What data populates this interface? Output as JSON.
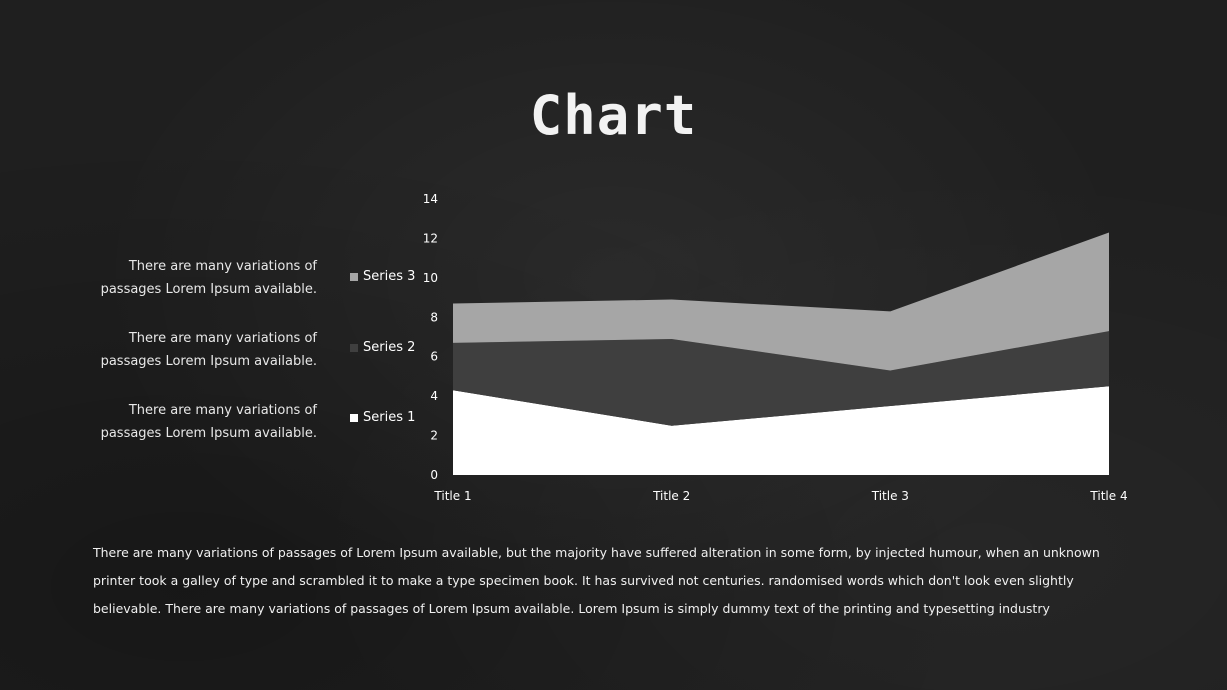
{
  "slide": {
    "title": "Chart",
    "paragraph": "There are many variations of passages of Lorem Ipsum available, but the majority have suffered alteration in some form, by injected humour, when an unknown printer took a galley of type and scrambled it to make a type specimen book. It has survived not centuries. randomised words which don't look even slightly believable. There are many variations of passages of Lorem Ipsum available. Lorem Ipsum is simply dummy text of the printing and typesetting industry"
  },
  "side_notes": [
    {
      "line1": "There are many variations of",
      "line2": "passages Lorem Ipsum available."
    },
    {
      "line1": "There are many variations of",
      "line2": "passages Lorem Ipsum available."
    },
    {
      "line1": "There are many variations of",
      "line2": "passages Lorem Ipsum available."
    }
  ],
  "chart_data": {
    "type": "area",
    "stacked": true,
    "categories": [
      "Title 1",
      "Title 2",
      "Title 3",
      "Title 4"
    ],
    "series": [
      {
        "name": "Series 1",
        "values": [
          4.3,
          2.5,
          3.5,
          4.5
        ],
        "color": "#ffffff"
      },
      {
        "name": "Series 2",
        "values": [
          2.4,
          4.4,
          1.8,
          2.8
        ],
        "color": "#3f3f3f"
      },
      {
        "name": "Series 3",
        "values": [
          2.0,
          2.0,
          3.0,
          5.0
        ],
        "color": "#a6a6a6"
      }
    ],
    "ylim": [
      0,
      14
    ],
    "yticks": [
      "0",
      "2",
      "4",
      "6",
      "8",
      "10",
      "12",
      "14"
    ],
    "grid": false,
    "legend": "left"
  }
}
